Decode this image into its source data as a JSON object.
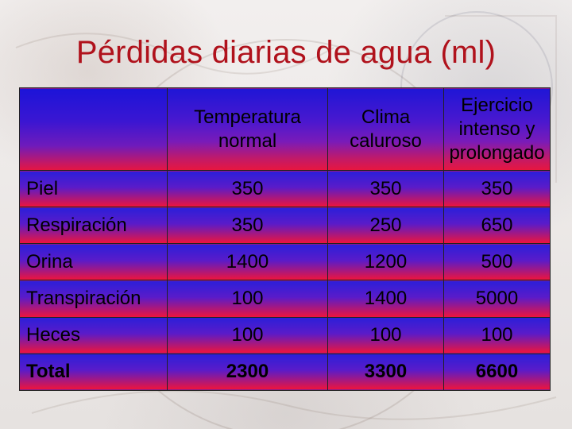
{
  "title": "Pérdidas diarias de agua (ml)",
  "table": {
    "columns": [
      {
        "lines": [
          "Temperatura",
          "normal"
        ]
      },
      {
        "lines": [
          "Clima",
          "caluroso"
        ]
      },
      {
        "lines": [
          "Ejercicio",
          "intenso y",
          "prolongado"
        ]
      }
    ],
    "rows": [
      {
        "label": "Piel",
        "values": [
          "350",
          "350",
          "350"
        ]
      },
      {
        "label": "Respiración",
        "values": [
          "350",
          "250",
          "650"
        ]
      },
      {
        "label": "Orina",
        "values": [
          "1400",
          "1200",
          "500"
        ]
      },
      {
        "label": "Transpiración",
        "values": [
          "100",
          "1400",
          "5000"
        ]
      },
      {
        "label": "Heces",
        "values": [
          "100",
          "100",
          "100"
        ]
      },
      {
        "label": "Total",
        "values": [
          "2300",
          "3300",
          "6600"
        ]
      }
    ]
  },
  "colors": {
    "title": "#b0121c",
    "gradient_top": "#2b1fd9",
    "gradient_bottom": "#f0143a"
  }
}
